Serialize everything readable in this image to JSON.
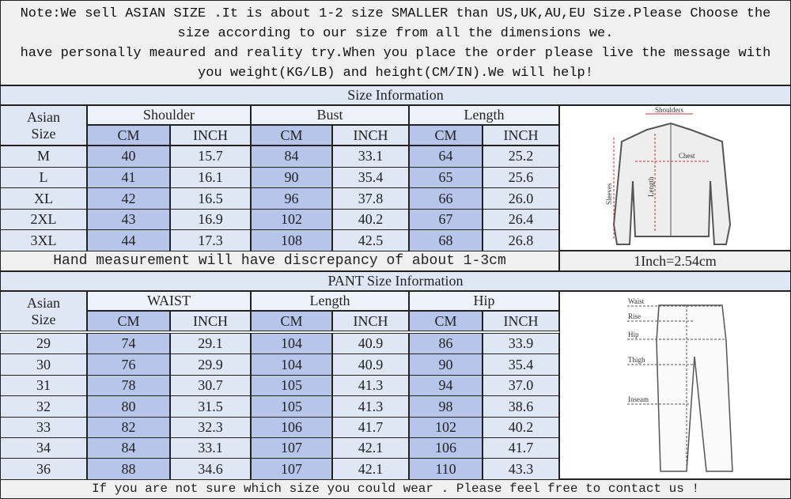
{
  "notice": [
    "Note:We sell ASIAN SIZE .It is about 1-2 size SMALLER than US,UK,AU,EU Size.Please Choose the",
    "size according to our size from all the dimensions we.",
    "have personally meaured and reality try.When you place the order please live the message with",
    "you weight(KG/LB) and height(CM/IN).We will help!"
  ],
  "jacket": {
    "title": "Size Information",
    "size_header": "Asian Size",
    "groups": [
      "Shoulder",
      "Bust",
      "Length"
    ],
    "units": [
      "CM",
      "INCH",
      "CM",
      "INCH",
      "CM",
      "INCH"
    ],
    "rows": [
      [
        "M",
        "40",
        "15.7",
        "84",
        "33.1",
        "64",
        "25.2"
      ],
      [
        "L",
        "41",
        "16.1",
        "90",
        "35.4",
        "65",
        "25.6"
      ],
      [
        "XL",
        "42",
        "16.5",
        "96",
        "37.8",
        "66",
        "26.0"
      ],
      [
        "2XL",
        "43",
        "16.9",
        "102",
        "40.2",
        "67",
        "26.4"
      ],
      [
        "3XL",
        "44",
        "17.3",
        "108",
        "42.5",
        "68",
        "26.8"
      ]
    ],
    "diagram": [
      "Shoulders",
      "Chest",
      "Length",
      "Sleeves"
    ]
  },
  "note": {
    "left": "Hand measurement will have discrepancy of about 1-3cm",
    "right": "1Inch=2.54cm"
  },
  "pant": {
    "title": "PANT Size Information",
    "size_header": "Asian Size",
    "groups": [
      "WAIST",
      "Length",
      "Hip"
    ],
    "units": [
      "CM",
      "INCH",
      "CM",
      "INCH",
      "CM",
      "INCH"
    ],
    "rows": [
      [
        "29",
        "74",
        "29.1",
        "104",
        "40.9",
        "86",
        "33.9"
      ],
      [
        "30",
        "76",
        "29.9",
        "104",
        "40.9",
        "90",
        "35.4"
      ],
      [
        "31",
        "78",
        "30.7",
        "105",
        "41.3",
        "94",
        "37.0"
      ],
      [
        "32",
        "80",
        "31.5",
        "105",
        "41.3",
        "98",
        "38.6"
      ],
      [
        "33",
        "82",
        "32.3",
        "106",
        "41.7",
        "102",
        "40.2"
      ],
      [
        "34",
        "84",
        "33.1",
        "107",
        "42.1",
        "106",
        "41.7"
      ],
      [
        "36",
        "88",
        "34.6",
        "107",
        "42.1",
        "110",
        "43.3"
      ]
    ],
    "diagram": [
      "Waist",
      "Rise",
      "Hip",
      "Thigh",
      "Inseam"
    ]
  },
  "footer": "If you are not sure which size you could wear . Please feel free to contact us !"
}
